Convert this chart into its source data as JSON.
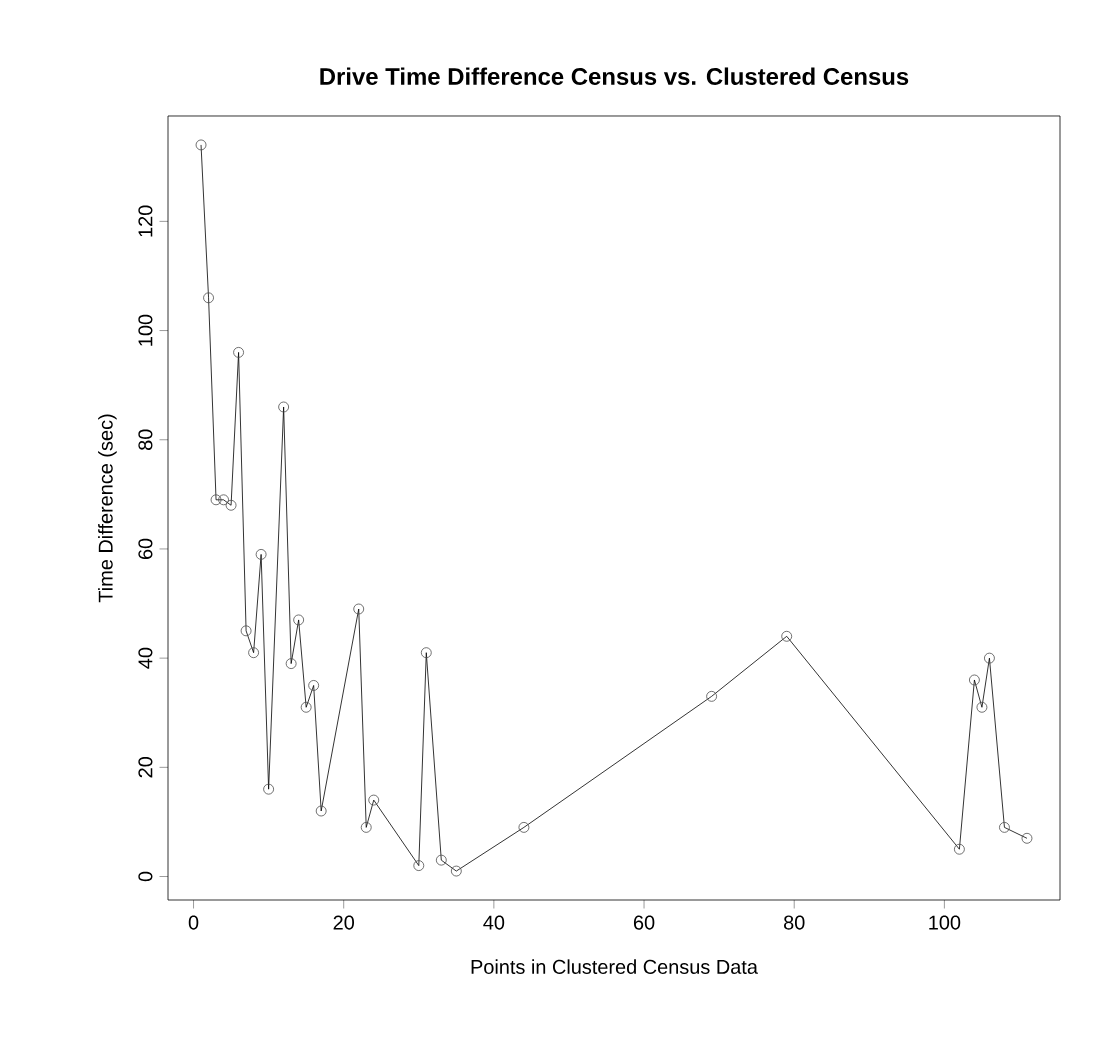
{
  "chart_data": {
    "type": "line",
    "title": "Drive Time Difference Census vs. Clustered Census",
    "xlabel": "Points in Clustered Census Data",
    "ylabel": "Time Difference (sec)",
    "x": [
      1,
      2,
      3,
      4,
      5,
      6,
      7,
      8,
      9,
      10,
      12,
      13,
      14,
      15,
      16,
      17,
      22,
      23,
      24,
      30,
      31,
      33,
      35,
      44,
      69,
      79,
      102,
      104,
      105,
      106,
      108,
      111
    ],
    "values": [
      134,
      106,
      69,
      69,
      68,
      96,
      45,
      41,
      59,
      16,
      86,
      39,
      47,
      31,
      35,
      12,
      49,
      9,
      14,
      2,
      41,
      3,
      1,
      9,
      33,
      44,
      5,
      36,
      31,
      40,
      9,
      7
    ],
    "color": "#000000",
    "marker": "circle",
    "line_style": "solid",
    "grid": false,
    "xlim": [
      -3.4,
      115.4
    ],
    "ylim": [
      -4.3,
      139.3
    ],
    "xticks": [
      0,
      20,
      40,
      60,
      80,
      100
    ],
    "yticks": [
      0,
      20,
      40,
      60,
      80,
      100,
      120
    ]
  }
}
